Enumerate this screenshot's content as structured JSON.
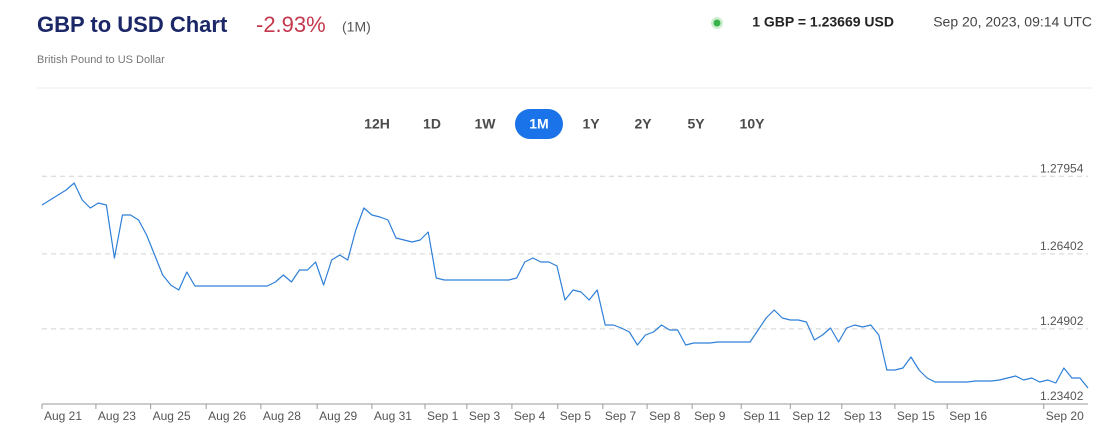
{
  "chart_data": {
    "type": "line",
    "title": "GBP to USD Chart",
    "change": "-2.93%",
    "period": "(1M)",
    "subtitle": "British Pound to US Dollar",
    "rate": "1 GBP = 1.23669 USD",
    "timestamp": "Sep 20, 2023, 09:14 UTC",
    "ranges": [
      "12H",
      "1D",
      "1W",
      "1M",
      "1Y",
      "2Y",
      "5Y",
      "10Y"
    ],
    "selected_range": "1M",
    "color": "#2f80d8",
    "values": [
      1.2738,
      1.2748,
      1.2758,
      1.2768,
      1.2782,
      1.2748,
      1.2732,
      1.2742,
      1.2738,
      1.2632,
      1.2718,
      1.2718,
      1.2708,
      1.2678,
      1.2638,
      1.2598,
      1.2578,
      1.2568,
      1.2604,
      1.2576,
      1.2576,
      1.2576,
      1.2576,
      1.2576,
      1.2576,
      1.2576,
      1.2576,
      1.2576,
      1.2576,
      1.2584,
      1.2598,
      1.2584,
      1.2608,
      1.2608,
      1.2624,
      1.2578,
      1.2628,
      1.2638,
      1.2628,
      1.2688,
      1.2732,
      1.2718,
      1.2714,
      1.2708,
      1.2672,
      1.2668,
      1.2664,
      1.2668,
      1.2684,
      1.2592,
      1.2588,
      1.2588,
      1.2588,
      1.2588,
      1.2588,
      1.2588,
      1.2588,
      1.2588,
      1.2588,
      1.2592,
      1.2624,
      1.2632,
      1.2624,
      1.2624,
      1.2616,
      1.2548,
      1.2568,
      1.2564,
      1.2548,
      1.2568,
      1.2498,
      1.2498,
      1.2492,
      1.2484,
      1.2458,
      1.2478,
      1.2484,
      1.2498,
      1.2488,
      1.2488,
      1.2458,
      1.2462,
      1.2462,
      1.2462,
      1.2464,
      1.2464,
      1.2464,
      1.2464,
      1.2464,
      1.2488,
      1.2512,
      1.2528,
      1.2512,
      1.2508,
      1.2508,
      1.2504,
      1.2468,
      1.2478,
      1.2492,
      1.2464,
      1.2492,
      1.2498,
      1.2494,
      1.2498,
      1.2478,
      1.2408,
      1.2408,
      1.2412,
      1.2434,
      1.2408,
      1.2392,
      1.2384,
      1.2384,
      1.2384,
      1.2384,
      1.2384,
      1.2386,
      1.2386,
      1.2386,
      1.2388,
      1.2392,
      1.2396,
      1.2388,
      1.2392,
      1.2384,
      1.2388,
      1.2382,
      1.2412,
      1.2392,
      1.2392,
      1.2372
    ],
    "xlim": [
      0,
      130
    ],
    "xticks": [
      {
        "value": 0,
        "label": "Aug 21"
      },
      {
        "value": 6.7,
        "label": "Aug 23"
      },
      {
        "value": 13.5,
        "label": "Aug 25"
      },
      {
        "value": 20.4,
        "label": "Aug 26"
      },
      {
        "value": 27.2,
        "label": "Aug 28"
      },
      {
        "value": 34.2,
        "label": "Aug 29"
      },
      {
        "value": 41,
        "label": "Aug 31"
      },
      {
        "value": 47.6,
        "label": "Sep 1"
      },
      {
        "value": 52.8,
        "label": "Sep 3"
      },
      {
        "value": 58.4,
        "label": "Sep 4"
      },
      {
        "value": 64.1,
        "label": "Sep 5"
      },
      {
        "value": 69.7,
        "label": "Sep 7"
      },
      {
        "value": 75.2,
        "label": "Sep 8"
      },
      {
        "value": 80.8,
        "label": "Sep 9"
      },
      {
        "value": 86.9,
        "label": "Sep 11"
      },
      {
        "value": 93,
        "label": "Sep 12"
      },
      {
        "value": 99.4,
        "label": "Sep 13"
      },
      {
        "value": 106,
        "label": "Sep 15"
      },
      {
        "value": 112.5,
        "label": "Sep 16"
      },
      {
        "value": 124.5,
        "label": "Sep 20"
      }
    ],
    "ylim": [
      1.234,
      1.283
    ],
    "yticks": [
      1.27954,
      1.26402,
      1.24902,
      1.23402
    ],
    "grid": true
  }
}
